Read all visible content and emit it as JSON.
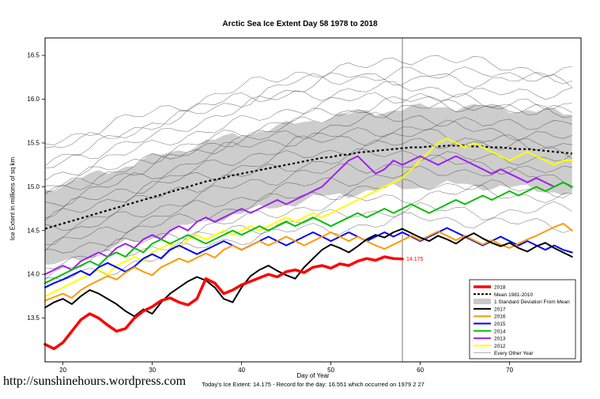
{
  "page": {
    "url": "http://sunshinehours.wordpress.com",
    "footer_caption": "Today's Ice Extent: 14.175  - Record for the day: 16.551 which occurred on 1979 2 27"
  },
  "chart_data": {
    "type": "line",
    "title": "Arctic Sea Ice Extent Day 58 1978 to 2018",
    "xlabel": "Day of Year",
    "ylabel": "Ice Extent in millions of sq km",
    "xlim": [
      18,
      78
    ],
    "ylim": [
      13.0,
      16.7
    ],
    "xticks": [
      20,
      30,
      40,
      50,
      60,
      70
    ],
    "yticks": [
      13.5,
      14.0,
      14.5,
      15.0,
      15.5,
      16.0,
      16.5
    ],
    "grid": false,
    "legend_position": "bottom-right",
    "x_start": 18,
    "marker": {
      "day": 58,
      "label": "14.175",
      "color": "#ff0000"
    },
    "mean": {
      "label": "Mean 1981-2010",
      "color": "#000000",
      "style": "dashed",
      "values": [
        14.52,
        14.55,
        14.58,
        14.61,
        14.64,
        14.67,
        14.7,
        14.73,
        14.76,
        14.79,
        14.82,
        14.85,
        14.88,
        14.91,
        14.94,
        14.97,
        15.0,
        15.03,
        15.06,
        15.08,
        15.1,
        15.13,
        15.15,
        15.17,
        15.19,
        15.21,
        15.23,
        15.25,
        15.27,
        15.29,
        15.31,
        15.33,
        15.34,
        15.36,
        15.37,
        15.39,
        15.4,
        15.41,
        15.42,
        15.43,
        15.44,
        15.45,
        15.45,
        15.46,
        15.46,
        15.47,
        15.47,
        15.47,
        15.46,
        15.46,
        15.45,
        15.45,
        15.44,
        15.43,
        15.43,
        15.42,
        15.41,
        15.4,
        15.39,
        15.38
      ]
    },
    "band": {
      "label": "1 Standard Deviation From Mean",
      "color": "#c8c8c8",
      "halfwidth": 0.45
    },
    "series": [
      {
        "name": "2012",
        "color": "#ffff00",
        "width": 2,
        "values": [
          13.75,
          13.8,
          13.85,
          13.9,
          13.95,
          14.0,
          14.05,
          14.0,
          14.1,
          14.15,
          14.2,
          14.15,
          14.25,
          14.3,
          14.35,
          14.3,
          14.4,
          14.45,
          14.4,
          14.45,
          14.5,
          14.45,
          14.5,
          14.55,
          14.5,
          14.55,
          14.6,
          14.65,
          14.6,
          14.65,
          14.7,
          14.65,
          14.7,
          14.75,
          14.8,
          14.85,
          14.9,
          14.95,
          15.0,
          15.05,
          15.1,
          15.2,
          15.3,
          15.4,
          15.5,
          15.55,
          15.5,
          15.45,
          15.5,
          15.45,
          15.4,
          15.35,
          15.3,
          15.35,
          15.4,
          15.35,
          15.3,
          15.25,
          15.3,
          15.3
        ]
      },
      {
        "name": "2013",
        "color": "#a020f0",
        "width": 2,
        "values": [
          14.0,
          14.05,
          14.1,
          14.05,
          14.15,
          14.2,
          14.25,
          14.2,
          14.3,
          14.35,
          14.3,
          14.4,
          14.45,
          14.4,
          14.5,
          14.55,
          14.5,
          14.6,
          14.65,
          14.6,
          14.65,
          14.7,
          14.75,
          14.7,
          14.75,
          14.8,
          14.85,
          14.8,
          14.85,
          14.9,
          14.95,
          15.0,
          15.1,
          15.2,
          15.3,
          15.35,
          15.25,
          15.15,
          15.2,
          15.3,
          15.25,
          15.3,
          15.35,
          15.3,
          15.25,
          15.3,
          15.35,
          15.3,
          15.25,
          15.2,
          15.15,
          15.2,
          15.15,
          15.1,
          15.05,
          15.1,
          15.05,
          15.0,
          15.05,
          15.0
        ]
      },
      {
        "name": "2014",
        "color": "#00c000",
        "width": 2,
        "values": [
          13.9,
          13.95,
          14.0,
          14.05,
          14.1,
          14.15,
          14.1,
          14.2,
          14.25,
          14.2,
          14.3,
          14.25,
          14.35,
          14.4,
          14.35,
          14.4,
          14.45,
          14.4,
          14.35,
          14.4,
          14.45,
          14.5,
          14.45,
          14.5,
          14.55,
          14.5,
          14.55,
          14.6,
          14.55,
          14.6,
          14.65,
          14.6,
          14.55,
          14.6,
          14.65,
          14.7,
          14.65,
          14.7,
          14.75,
          14.7,
          14.75,
          14.8,
          14.75,
          14.7,
          14.75,
          14.8,
          14.85,
          14.8,
          14.85,
          14.9,
          14.85,
          14.9,
          14.95,
          14.9,
          14.95,
          15.0,
          14.95,
          15.0,
          15.05,
          15.0
        ]
      },
      {
        "name": "2015",
        "color": "#0000ff",
        "width": 2,
        "values": [
          13.85,
          13.9,
          13.94,
          13.99,
          14.04,
          13.99,
          14.08,
          14.13,
          14.08,
          14.03,
          14.09,
          14.18,
          14.23,
          14.18,
          14.28,
          14.33,
          14.28,
          14.23,
          14.28,
          14.33,
          14.38,
          14.33,
          14.28,
          14.33,
          14.38,
          14.43,
          14.38,
          14.33,
          14.38,
          14.43,
          14.48,
          14.43,
          14.38,
          14.43,
          14.48,
          14.43,
          14.38,
          14.43,
          14.48,
          14.43,
          14.48,
          14.43,
          14.38,
          14.43,
          14.48,
          14.53,
          14.48,
          14.43,
          14.38,
          14.33,
          14.38,
          14.43,
          14.38,
          14.33,
          14.38,
          14.33,
          14.28,
          14.33,
          14.28,
          14.25
        ]
      },
      {
        "name": "2016",
        "color": "#ff9900",
        "width": 2,
        "values": [
          13.7,
          13.74,
          13.78,
          13.73,
          13.82,
          13.88,
          13.93,
          13.98,
          13.94,
          14.02,
          14.08,
          14.03,
          13.99,
          14.08,
          14.13,
          14.18,
          14.14,
          14.19,
          14.24,
          14.19,
          14.28,
          14.33,
          14.28,
          14.33,
          14.38,
          14.33,
          14.38,
          14.43,
          14.38,
          14.33,
          14.38,
          14.43,
          14.48,
          14.43,
          14.38,
          14.43,
          14.38,
          14.33,
          14.29,
          14.34,
          14.39,
          14.44,
          14.39,
          14.44,
          14.49,
          14.44,
          14.39,
          14.44,
          14.39,
          14.34,
          14.39,
          14.34,
          14.3,
          14.35,
          14.4,
          14.44,
          14.49,
          14.54,
          14.58,
          14.5
        ]
      },
      {
        "name": "2017",
        "color": "#000000",
        "width": 2,
        "values": [
          13.62,
          13.68,
          13.72,
          13.66,
          13.75,
          13.82,
          13.78,
          13.72,
          13.66,
          13.58,
          13.52,
          13.6,
          13.55,
          13.68,
          13.78,
          13.85,
          13.92,
          13.97,
          13.93,
          13.85,
          13.72,
          13.68,
          13.85,
          13.98,
          14.05,
          14.1,
          14.04,
          13.99,
          13.95,
          14.08,
          14.18,
          14.28,
          14.34,
          14.3,
          14.25,
          14.32,
          14.4,
          14.45,
          14.42,
          14.48,
          14.52,
          14.47,
          14.42,
          14.38,
          14.44,
          14.4,
          14.35,
          14.42,
          14.47,
          14.41,
          14.36,
          14.32,
          14.36,
          14.3,
          14.26,
          14.32,
          14.36,
          14.3,
          14.25,
          14.2
        ]
      },
      {
        "name": "2018",
        "color": "#ff0000",
        "width": 3.5,
        "values": [
          13.2,
          13.15,
          13.22,
          13.35,
          13.48,
          13.55,
          13.5,
          13.42,
          13.35,
          13.38,
          13.5,
          13.58,
          13.63,
          13.7,
          13.73,
          13.68,
          13.65,
          13.72,
          13.95,
          13.9,
          13.78,
          13.82,
          13.88,
          13.92,
          13.96,
          14.0,
          13.97,
          14.03,
          14.05,
          14.02,
          14.08,
          14.1,
          14.07,
          14.12,
          14.1,
          14.15,
          14.18,
          14.16,
          14.2,
          14.18,
          14.175
        ]
      }
    ],
    "background_years": {
      "label": "Every Other Year",
      "color": "#333333",
      "anchor_days": [
        18,
        25,
        32,
        39,
        46,
        53,
        60,
        67,
        77
      ],
      "lines": [
        [
          15.5,
          15.7,
          15.9,
          16.1,
          16.3,
          16.35,
          16.5,
          16.4,
          16.3
        ],
        [
          15.3,
          15.5,
          15.8,
          16.0,
          16.1,
          16.3,
          16.2,
          16.35,
          16.15
        ],
        [
          15.4,
          15.6,
          15.75,
          15.95,
          16.2,
          16.25,
          16.3,
          16.2,
          16.25
        ],
        [
          15.2,
          15.45,
          15.6,
          15.9,
          16.05,
          16.1,
          16.15,
          16.05,
          16.1
        ],
        [
          15.1,
          15.3,
          15.55,
          15.7,
          15.9,
          16.0,
          16.05,
          15.95,
          15.85
        ],
        [
          15.0,
          15.2,
          15.4,
          15.6,
          15.8,
          15.85,
          15.9,
          15.95,
          15.8
        ],
        [
          14.95,
          15.1,
          15.3,
          15.55,
          15.7,
          15.9,
          16.0,
          15.9,
          15.95
        ],
        [
          14.9,
          15.15,
          15.35,
          15.5,
          15.6,
          15.75,
          15.8,
          15.7,
          15.75
        ],
        [
          14.8,
          15.0,
          15.2,
          15.45,
          15.55,
          15.6,
          15.7,
          15.65,
          15.55
        ],
        [
          14.7,
          14.9,
          15.1,
          15.3,
          15.5,
          15.55,
          15.6,
          15.5,
          15.45
        ],
        [
          14.6,
          14.85,
          15.05,
          15.2,
          15.35,
          15.45,
          15.5,
          15.55,
          15.4
        ],
        [
          14.5,
          14.7,
          14.95,
          15.1,
          15.25,
          15.35,
          15.4,
          15.3,
          15.35
        ],
        [
          14.4,
          14.6,
          14.8,
          15.0,
          15.15,
          15.2,
          15.3,
          15.25,
          15.15
        ],
        [
          14.3,
          14.5,
          14.7,
          14.85,
          15.0,
          15.1,
          15.15,
          15.2,
          15.05
        ],
        [
          14.2,
          14.4,
          14.6,
          14.75,
          14.9,
          14.95,
          15.05,
          15.0,
          14.95
        ],
        [
          14.1,
          14.3,
          14.45,
          14.6,
          14.75,
          14.85,
          14.9,
          14.95,
          14.85
        ],
        [
          14.0,
          14.2,
          14.35,
          14.5,
          14.6,
          14.7,
          14.75,
          14.7,
          14.75
        ],
        [
          13.9,
          14.05,
          14.25,
          14.4,
          14.5,
          14.55,
          14.65,
          14.6,
          14.55
        ]
      ]
    },
    "legend": [
      {
        "label": "2018",
        "swatch": "line",
        "color": "#ff0000",
        "width": 3.5
      },
      {
        "label": "Mean 1981-2010",
        "swatch": "dashed-line",
        "color": "#000000",
        "width": 2
      },
      {
        "label": "1 Standard Deviation From Mean",
        "swatch": "band",
        "color": "#c8c8c8"
      },
      {
        "label": "2017",
        "swatch": "line",
        "color": "#000000",
        "width": 2
      },
      {
        "label": "2016",
        "swatch": "line",
        "color": "#ff9900",
        "width": 2
      },
      {
        "label": "2015",
        "swatch": "line",
        "color": "#0000ff",
        "width": 2
      },
      {
        "label": "2014",
        "swatch": "line",
        "color": "#00c000",
        "width": 2
      },
      {
        "label": "2013",
        "swatch": "line",
        "color": "#a020f0",
        "width": 2
      },
      {
        "label": "2012",
        "swatch": "line",
        "color": "#ffff00",
        "width": 2
      },
      {
        "label": "Every Other Year",
        "swatch": "line",
        "color": "#888888",
        "width": 0.6
      }
    ]
  }
}
